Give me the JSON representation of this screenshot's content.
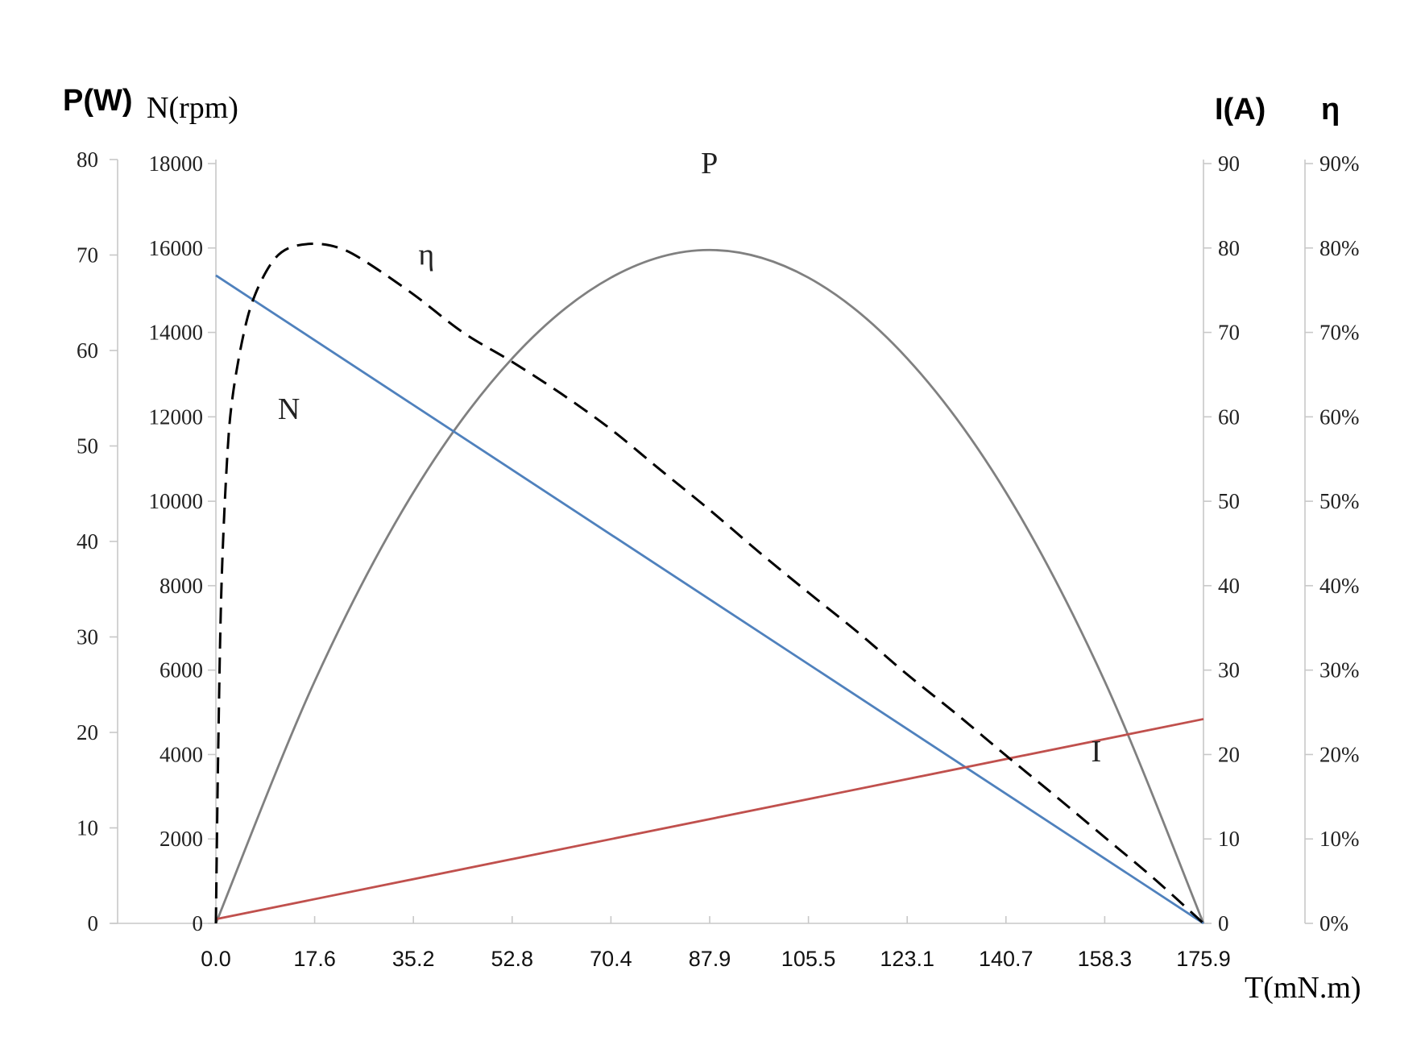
{
  "chart_data": {
    "type": "line",
    "x_axis": {
      "label": "T(mN.m)",
      "range": [
        0,
        175.9
      ],
      "ticks": [
        "0.0",
        "17.6",
        "35.2",
        "52.8",
        "70.4",
        "87.9",
        "105.5",
        "123.1",
        "140.7",
        "158.3",
        "175.9"
      ]
    },
    "y_axes": {
      "power": {
        "label": "P(W)",
        "range": [
          0,
          80
        ],
        "ticks": [
          "0",
          "10",
          "20",
          "30",
          "40",
          "50",
          "60",
          "70",
          "80"
        ]
      },
      "speed": {
        "label": "N(rpm)",
        "range": [
          0,
          18000
        ],
        "ticks": [
          "0",
          "2000",
          "4000",
          "6000",
          "8000",
          "10000",
          "12000",
          "14000",
          "16000",
          "18000"
        ]
      },
      "current": {
        "label": "I(A)",
        "range": [
          0,
          90
        ],
        "ticks": [
          "0",
          "10",
          "20",
          "30",
          "40",
          "50",
          "60",
          "70",
          "80",
          "90"
        ]
      },
      "efficiency": {
        "label": "η",
        "range": [
          0,
          0.9
        ],
        "ticks": [
          "0%",
          "10%",
          "20%",
          "30%",
          "40%",
          "50%",
          "60%",
          "70%",
          "80%",
          "90%"
        ]
      }
    },
    "series": [
      {
        "name": "P",
        "axis": "power",
        "color": "#808080",
        "dash": "solid",
        "x": [
          0,
          17.6,
          35.2,
          52.8,
          70.4,
          87.9,
          105.5,
          123.1,
          140.7,
          158.3,
          175.9
        ],
        "y": [
          0,
          25.5,
          45.4,
          59.5,
          68.0,
          70.9,
          68.0,
          59.5,
          45.4,
          25.5,
          0
        ]
      },
      {
        "name": "N",
        "axis": "speed",
        "color": "#4f81bd",
        "dash": "solid",
        "x": [
          0,
          175.9
        ],
        "y": [
          15350,
          0
        ]
      },
      {
        "name": "I",
        "axis": "current",
        "color": "#c0504d",
        "dash": "solid",
        "x": [
          0,
          175.9
        ],
        "y": [
          0.5,
          24.2
        ]
      },
      {
        "name": "η",
        "axis": "efficiency",
        "color": "#000000",
        "dash": "dashed",
        "x": [
          0,
          0.4,
          1,
          2,
          3,
          5,
          7,
          10,
          13,
          17.6,
          22,
          26.4,
          35.2,
          44,
          52.8,
          61.6,
          70.4,
          79.2,
          87.9,
          96.7,
          105.5,
          114.3,
          123.1,
          131.9,
          140.7,
          149.5,
          158.3,
          167.1,
          175.9
        ],
        "y": [
          0,
          0.2,
          0.4,
          0.55,
          0.625,
          0.7,
          0.745,
          0.783,
          0.8,
          0.805,
          0.8,
          0.785,
          0.745,
          0.7,
          0.665,
          0.627,
          0.585,
          0.537,
          0.49,
          0.44,
          0.392,
          0.345,
          0.295,
          0.248,
          0.199,
          0.151,
          0.102,
          0.053,
          0
        ]
      }
    ],
    "curve_labels": [
      {
        "text": "P",
        "series": "P"
      },
      {
        "text": "η",
        "series": "η"
      },
      {
        "text": "N",
        "series": "N"
      },
      {
        "text": "I",
        "series": "I"
      }
    ],
    "grid": false,
    "legend": "none"
  }
}
